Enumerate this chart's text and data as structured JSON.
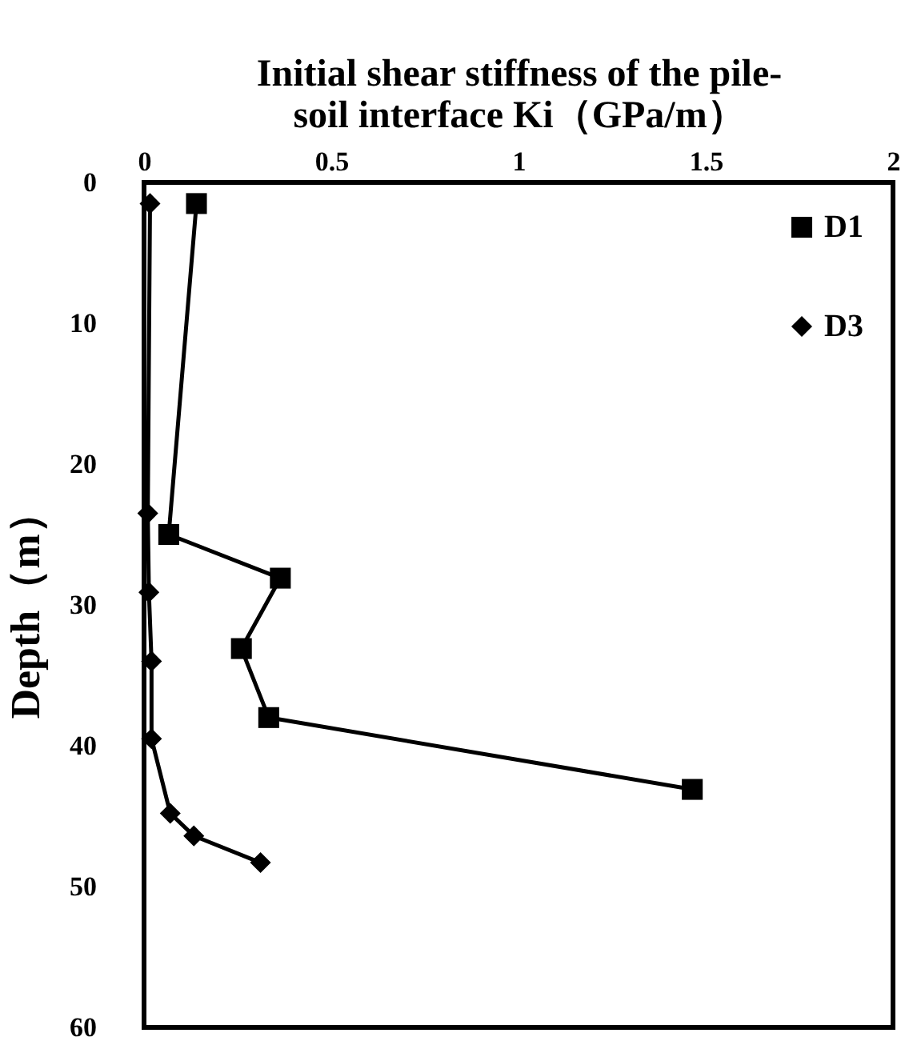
{
  "chart_data": {
    "type": "line",
    "xlabel": "Initial shear stiffness of the pile-soil interface Ki（GPa/m）",
    "ylabel": "Depth（m）",
    "xlim": [
      0,
      2
    ],
    "xticks": [
      0,
      0.5,
      1,
      1.5,
      2
    ],
    "ylim": [
      60,
      0
    ],
    "yticks": [
      0,
      10,
      20,
      30,
      40,
      50,
      60
    ],
    "grid": false,
    "legend": "top right",
    "line_style": "solid",
    "series": [
      {
        "name": "D1",
        "color": "#000000",
        "marker": "square",
        "x": [
          0.14,
          0.066,
          0.364,
          0.26,
          0.333,
          1.464
        ],
        "values": [
          1.5,
          25,
          28.1,
          33.1,
          38,
          43.1
        ]
      },
      {
        "name": "D3",
        "color": "#000000",
        "marker": "diamond",
        "x": [
          0.016,
          0.01,
          0.013,
          0.02,
          0.02,
          0.07,
          0.133,
          0.311
        ],
        "values": [
          1.5,
          23.5,
          29.1,
          34,
          39.5,
          44.8,
          46.4,
          48.3
        ]
      }
    ]
  }
}
